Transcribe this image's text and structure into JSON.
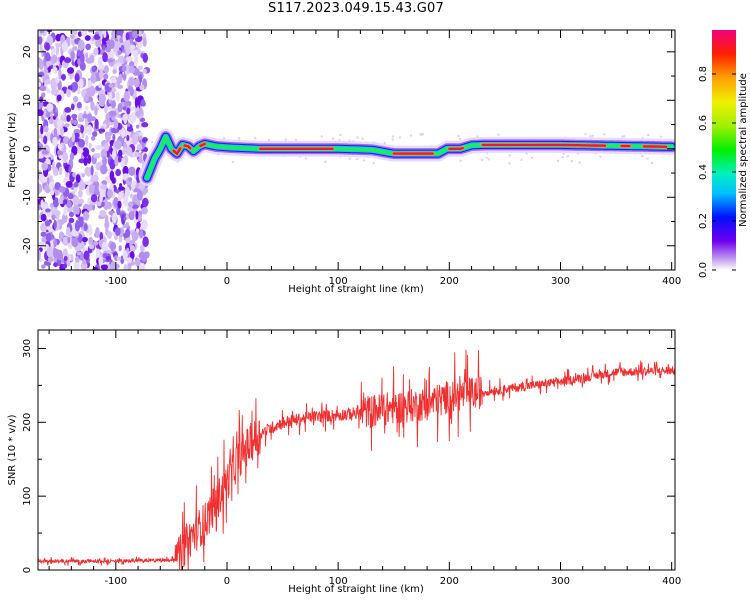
{
  "title": "S117.2023.049.15.43.G07",
  "chart_data": [
    {
      "type": "heatmap",
      "xlabel": "Height of straight line (km)",
      "ylabel": "Frequency (Hz)",
      "xlim": [
        -170,
        403
      ],
      "ylim": [
        -25,
        24.5
      ],
      "xticks": [
        -100,
        0,
        100,
        200,
        300,
        400
      ],
      "xtick_labels": [
        "-100",
        "0",
        "100",
        "200",
        "300",
        "400"
      ],
      "yticks": [
        -20,
        -10,
        0,
        10,
        20
      ],
      "ytick_labels": [
        "-20",
        "-10",
        "0",
        "10",
        "20"
      ],
      "noise_region_x": [
        -170,
        -72
      ],
      "ridge": {
        "x": [
          -72,
          -65,
          -60,
          -55,
          -50,
          -45,
          -40,
          -35,
          -30,
          -25,
          -20,
          -10,
          0,
          30,
          60,
          100,
          130,
          150,
          185,
          190,
          198,
          210,
          220,
          230,
          300,
          350,
          400
        ],
        "y": [
          -6,
          -2,
          0,
          2.5,
          0,
          -1,
          0.8,
          0.5,
          -0.5,
          0.5,
          1,
          0.5,
          0.3,
          0,
          0,
          0,
          -0.2,
          -1,
          -1,
          -1,
          0,
          0,
          0.7,
          0.8,
          0.8,
          0.6,
          0.4
        ]
      },
      "colorbar": {
        "label": "Normalized spectral amplitude",
        "range": [
          0,
          1
        ],
        "ticks": [
          0.0,
          0.2,
          0.4,
          0.6,
          0.8
        ],
        "tick_labels": [
          "0.0",
          "0.2",
          "0.4",
          "0.6",
          "0.8"
        ]
      }
    },
    {
      "type": "line",
      "xlabel": "Height of straight line (km)",
      "ylabel": "SNR (10 * v/v)",
      "xlim": [
        -170,
        403
      ],
      "ylim": [
        0,
        325
      ],
      "xticks": [
        -100,
        0,
        100,
        200,
        300,
        400
      ],
      "xtick_labels": [
        "-100",
        "0",
        "100",
        "200",
        "300",
        "400"
      ],
      "yticks": [
        0,
        100,
        200,
        300
      ],
      "ytick_labels": [
        "0",
        "100",
        "200",
        "300"
      ],
      "series": [
        {
          "color": "#f03030",
          "x": [
            -170,
            -100,
            -45,
            -35,
            -20,
            -10,
            0,
            10,
            20,
            30,
            50,
            80,
            100,
            130,
            150,
            180,
            200,
            250,
            300,
            350,
            400
          ],
          "y": [
            12,
            12,
            14,
            40,
            65,
            90,
            120,
            150,
            170,
            185,
            200,
            208,
            210,
            215,
            220,
            225,
            235,
            245,
            255,
            268,
            270
          ]
        }
      ]
    }
  ]
}
